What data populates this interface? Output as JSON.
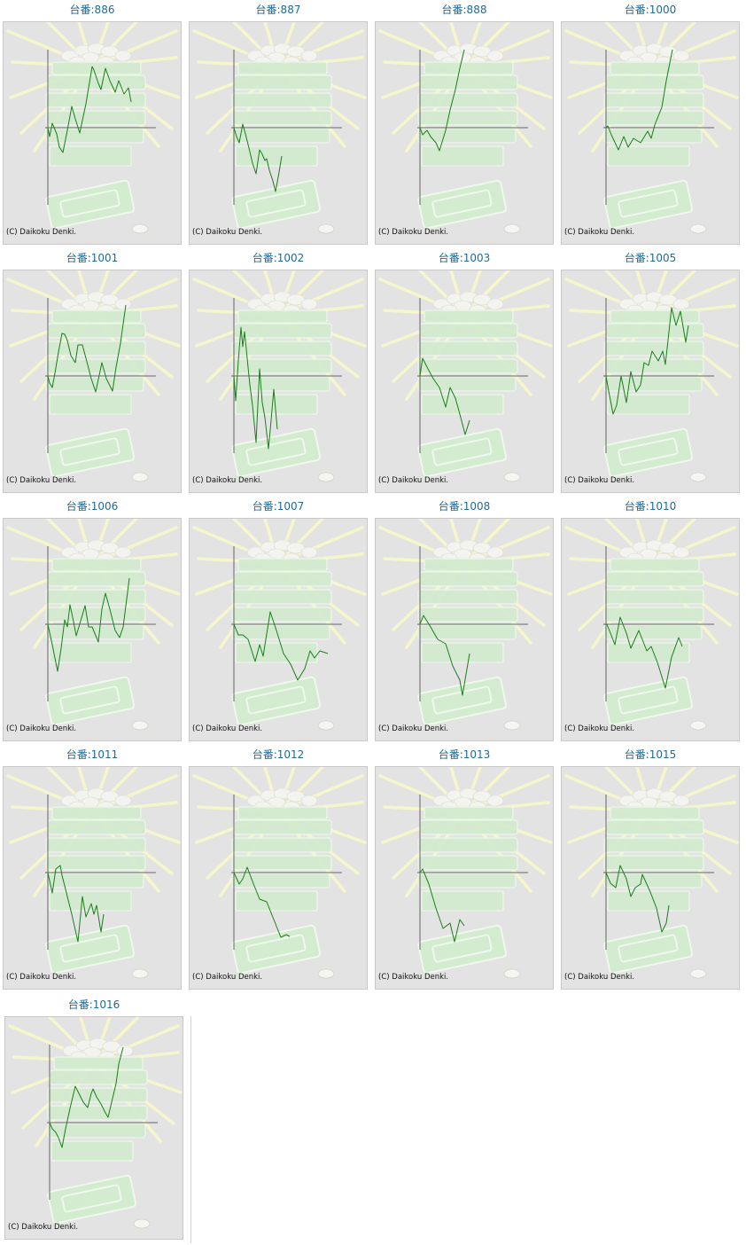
{
  "copyright": "(C) Daikoku Denki.",
  "colors": {
    "line": "#1a7f1a",
    "axis": "#666666",
    "label": "#1f6b98",
    "background": "#e3e3e3"
  },
  "chart_data": [
    {
      "type": "line",
      "title": "台番:886",
      "xlim": [
        0,
        122
      ],
      "ylim": [
        -87,
        88
      ],
      "points": [
        [
          0,
          0
        ],
        [
          2,
          -10
        ],
        [
          5,
          5
        ],
        [
          10,
          -7
        ],
        [
          13,
          -22
        ],
        [
          17,
          -28
        ],
        [
          22,
          -3
        ],
        [
          27,
          24
        ],
        [
          31,
          10
        ],
        [
          36,
          -6
        ],
        [
          43,
          27
        ],
        [
          50,
          69
        ],
        [
          52,
          65
        ],
        [
          57,
          50
        ],
        [
          60,
          43
        ],
        [
          65,
          67
        ],
        [
          70,
          53
        ],
        [
          76,
          40
        ],
        [
          80,
          53
        ],
        [
          86,
          38
        ],
        [
          91,
          45
        ],
        [
          94,
          29
        ]
      ]
    },
    {
      "type": "line",
      "title": "台番:887",
      "xlim": [
        0,
        122
      ],
      "ylim": [
        -87,
        88
      ],
      "points": [
        [
          0,
          0
        ],
        [
          3,
          -10
        ],
        [
          6,
          -17
        ],
        [
          10,
          4
        ],
        [
          13,
          -7
        ],
        [
          17,
          -23
        ],
        [
          21,
          -40
        ],
        [
          25,
          -52
        ],
        [
          29,
          -25
        ],
        [
          32,
          -30
        ],
        [
          35,
          -37
        ],
        [
          37,
          -35
        ],
        [
          40,
          -48
        ],
        [
          44,
          -60
        ],
        [
          47,
          -72
        ],
        [
          51,
          -50
        ],
        [
          54,
          -32
        ]
      ]
    },
    {
      "type": "line",
      "title": "台番:888",
      "xlim": [
        0,
        122
      ],
      "ylim": [
        -87,
        88
      ],
      "points": [
        [
          0,
          0
        ],
        [
          3,
          -8
        ],
        [
          8,
          -3
        ],
        [
          12,
          -10
        ],
        [
          18,
          -17
        ],
        [
          22,
          -26
        ],
        [
          29,
          -3
        ],
        [
          34,
          20
        ],
        [
          40,
          43
        ],
        [
          45,
          67
        ],
        [
          50,
          88
        ]
      ]
    },
    {
      "type": "line",
      "title": "台番:1000",
      "xlim": [
        0,
        122
      ],
      "ylim": [
        -87,
        88
      ],
      "points": [
        [
          0,
          0
        ],
        [
          2,
          2
        ],
        [
          6,
          -8
        ],
        [
          14,
          -25
        ],
        [
          20,
          -10
        ],
        [
          25,
          -22
        ],
        [
          31,
          -12
        ],
        [
          39,
          -17
        ],
        [
          47,
          -4
        ],
        [
          51,
          -12
        ],
        [
          55,
          3
        ],
        [
          63,
          23
        ],
        [
          68,
          53
        ],
        [
          75,
          88
        ]
      ]
    },
    {
      "type": "line",
      "title": "台番:1001",
      "xlim": [
        0,
        122
      ],
      "ylim": [
        -87,
        88
      ],
      "points": [
        [
          0,
          0
        ],
        [
          2,
          -8
        ],
        [
          5,
          -13
        ],
        [
          8,
          3
        ],
        [
          12,
          27
        ],
        [
          16,
          48
        ],
        [
          19,
          47
        ],
        [
          22,
          40
        ],
        [
          26,
          23
        ],
        [
          31,
          15
        ],
        [
          34,
          35
        ],
        [
          39,
          35
        ],
        [
          43,
          20
        ],
        [
          49,
          -3
        ],
        [
          54,
          -18
        ],
        [
          61,
          15
        ],
        [
          66,
          -3
        ],
        [
          73,
          -17
        ],
        [
          77,
          10
        ],
        [
          82,
          37
        ],
        [
          88,
          80
        ]
      ]
    },
    {
      "type": "line",
      "title": "台番:1002",
      "xlim": [
        0,
        122
      ],
      "ylim": [
        -87,
        88
      ],
      "points": [
        [
          0,
          0
        ],
        [
          2,
          -28
        ],
        [
          5,
          17
        ],
        [
          8,
          55
        ],
        [
          10,
          33
        ],
        [
          12,
          50
        ],
        [
          14,
          30
        ],
        [
          18,
          -10
        ],
        [
          21,
          -33
        ],
        [
          25,
          -75
        ],
        [
          29,
          8
        ],
        [
          32,
          -30
        ],
        [
          35,
          -47
        ],
        [
          39,
          -82
        ],
        [
          42,
          -50
        ],
        [
          45,
          -15
        ],
        [
          49,
          -60
        ]
      ]
    },
    {
      "type": "line",
      "title": "台番:1003",
      "xlim": [
        0,
        122
      ],
      "ylim": [
        -87,
        88
      ],
      "points": [
        [
          0,
          0
        ],
        [
          3,
          20
        ],
        [
          8,
          10
        ],
        [
          15,
          -3
        ],
        [
          22,
          -13
        ],
        [
          29,
          -35
        ],
        [
          34,
          -13
        ],
        [
          40,
          -25
        ],
        [
          45,
          -43
        ],
        [
          51,
          -66
        ],
        [
          56,
          -50
        ]
      ]
    },
    {
      "type": "line",
      "title": "台番:1005",
      "xlim": [
        0,
        122
      ],
      "ylim": [
        -87,
        88
      ],
      "points": [
        [
          0,
          0
        ],
        [
          3,
          -17
        ],
        [
          8,
          -43
        ],
        [
          12,
          -33
        ],
        [
          17,
          0
        ],
        [
          23,
          -30
        ],
        [
          28,
          5
        ],
        [
          34,
          -18
        ],
        [
          39,
          -10
        ],
        [
          43,
          15
        ],
        [
          48,
          12
        ],
        [
          52,
          28
        ],
        [
          59,
          17
        ],
        [
          64,
          28
        ],
        [
          67,
          13
        ],
        [
          74,
          77
        ],
        [
          79,
          57
        ],
        [
          84,
          73
        ],
        [
          90,
          38
        ],
        [
          93,
          57
        ]
      ]
    },
    {
      "type": "line",
      "title": "台番:1006",
      "xlim": [
        0,
        122
      ],
      "ylim": [
        -87,
        88
      ],
      "points": [
        [
          0,
          0
        ],
        [
          5,
          -23
        ],
        [
          11,
          -53
        ],
        [
          15,
          -27
        ],
        [
          19,
          5
        ],
        [
          22,
          -3
        ],
        [
          25,
          22
        ],
        [
          29,
          3
        ],
        [
          32,
          -13
        ],
        [
          38,
          7
        ],
        [
          42,
          21
        ],
        [
          46,
          -3
        ],
        [
          50,
          -3
        ],
        [
          57,
          -20
        ],
        [
          61,
          17
        ],
        [
          65,
          35
        ],
        [
          70,
          17
        ],
        [
          76,
          -7
        ],
        [
          81,
          -15
        ],
        [
          85,
          -3
        ],
        [
          92,
          52
        ]
      ]
    },
    {
      "type": "line",
      "title": "台番:1007",
      "xlim": [
        0,
        122
      ],
      "ylim": [
        -87,
        88
      ],
      "points": [
        [
          0,
          0
        ],
        [
          5,
          -12
        ],
        [
          10,
          -12
        ],
        [
          16,
          -17
        ],
        [
          24,
          -42
        ],
        [
          29,
          -23
        ],
        [
          33,
          -36
        ],
        [
          41,
          14
        ],
        [
          48,
          -7
        ],
        [
          56,
          -33
        ],
        [
          64,
          -45
        ],
        [
          72,
          -63
        ],
        [
          80,
          -50
        ],
        [
          86,
          -30
        ],
        [
          91,
          -38
        ],
        [
          97,
          -30
        ],
        [
          106,
          -33
        ]
      ]
    },
    {
      "type": "line",
      "title": "台番:1008",
      "xlim": [
        0,
        122
      ],
      "ylim": [
        -87,
        88
      ],
      "points": [
        [
          0,
          0
        ],
        [
          4,
          10
        ],
        [
          12,
          -3
        ],
        [
          20,
          -17
        ],
        [
          29,
          -22
        ],
        [
          37,
          -47
        ],
        [
          45,
          -63
        ],
        [
          48,
          -80
        ],
        [
          56,
          -33
        ]
      ]
    },
    {
      "type": "line",
      "title": "台番:1010",
      "xlim": [
        0,
        122
      ],
      "ylim": [
        -87,
        88
      ],
      "points": [
        [
          0,
          0
        ],
        [
          1,
          0
        ],
        [
          5,
          -10
        ],
        [
          10,
          -23
        ],
        [
          16,
          8
        ],
        [
          23,
          -10
        ],
        [
          28,
          -27
        ],
        [
          37,
          -7
        ],
        [
          46,
          -30
        ],
        [
          51,
          -25
        ],
        [
          58,
          -43
        ],
        [
          67,
          -72
        ],
        [
          74,
          -37
        ],
        [
          82,
          -15
        ],
        [
          86,
          -25
        ]
      ]
    },
    {
      "type": "line",
      "title": "台番:1011",
      "xlim": [
        0,
        122
      ],
      "ylim": [
        -87,
        88
      ],
      "points": [
        [
          0,
          0
        ],
        [
          5,
          -23
        ],
        [
          9,
          4
        ],
        [
          14,
          8
        ],
        [
          16,
          -3
        ],
        [
          22,
          -27
        ],
        [
          27,
          -47
        ],
        [
          34,
          -78
        ],
        [
          39,
          -27
        ],
        [
          43,
          -50
        ],
        [
          49,
          -35
        ],
        [
          52,
          -47
        ],
        [
          55,
          -37
        ],
        [
          60,
          -67
        ],
        [
          63,
          -47
        ]
      ]
    },
    {
      "type": "line",
      "title": "台番:1012",
      "xlim": [
        0,
        122
      ],
      "ylim": [
        -87,
        88
      ],
      "points": [
        [
          0,
          0
        ],
        [
          6,
          -13
        ],
        [
          10,
          -7
        ],
        [
          15,
          6
        ],
        [
          21,
          -10
        ],
        [
          29,
          -30
        ],
        [
          37,
          -33
        ],
        [
          45,
          -53
        ],
        [
          53,
          -73
        ],
        [
          59,
          -70
        ],
        [
          63,
          -72
        ]
      ]
    },
    {
      "type": "line",
      "title": "台番:1013",
      "xlim": [
        0,
        122
      ],
      "ylim": [
        -87,
        88
      ],
      "points": [
        [
          0,
          0
        ],
        [
          3,
          4
        ],
        [
          10,
          -13
        ],
        [
          18,
          -40
        ],
        [
          26,
          -63
        ],
        [
          34,
          -57
        ],
        [
          39,
          -78
        ],
        [
          45,
          -53
        ],
        [
          50,
          -60
        ]
      ]
    },
    {
      "type": "line",
      "title": "台番:1015",
      "xlim": [
        0,
        122
      ],
      "ylim": [
        -87,
        88
      ],
      "points": [
        [
          0,
          0
        ],
        [
          5,
          -12
        ],
        [
          11,
          -17
        ],
        [
          16,
          8
        ],
        [
          23,
          -7
        ],
        [
          28,
          -27
        ],
        [
          33,
          -17
        ],
        [
          39,
          -13
        ],
        [
          41,
          -2
        ],
        [
          50,
          -22
        ],
        [
          57,
          -40
        ],
        [
          63,
          -67
        ],
        [
          68,
          -57
        ],
        [
          71,
          -37
        ]
      ]
    },
    {
      "type": "line",
      "title": "台番:1016",
      "xlim": [
        0,
        122
      ],
      "ylim": [
        -87,
        88
      ],
      "points": [
        [
          0,
          0
        ],
        [
          3,
          -7
        ],
        [
          7,
          -11
        ],
        [
          10,
          -17
        ],
        [
          14,
          -28
        ],
        [
          18,
          -7
        ],
        [
          23,
          16
        ],
        [
          29,
          41
        ],
        [
          33,
          33
        ],
        [
          38,
          23
        ],
        [
          43,
          17
        ],
        [
          47,
          33
        ],
        [
          49,
          38
        ],
        [
          53,
          29
        ],
        [
          58,
          21
        ],
        [
          63,
          11
        ],
        [
          66,
          6
        ],
        [
          70,
          23
        ],
        [
          75,
          44
        ],
        [
          78,
          66
        ],
        [
          83,
          85
        ]
      ]
    }
  ]
}
